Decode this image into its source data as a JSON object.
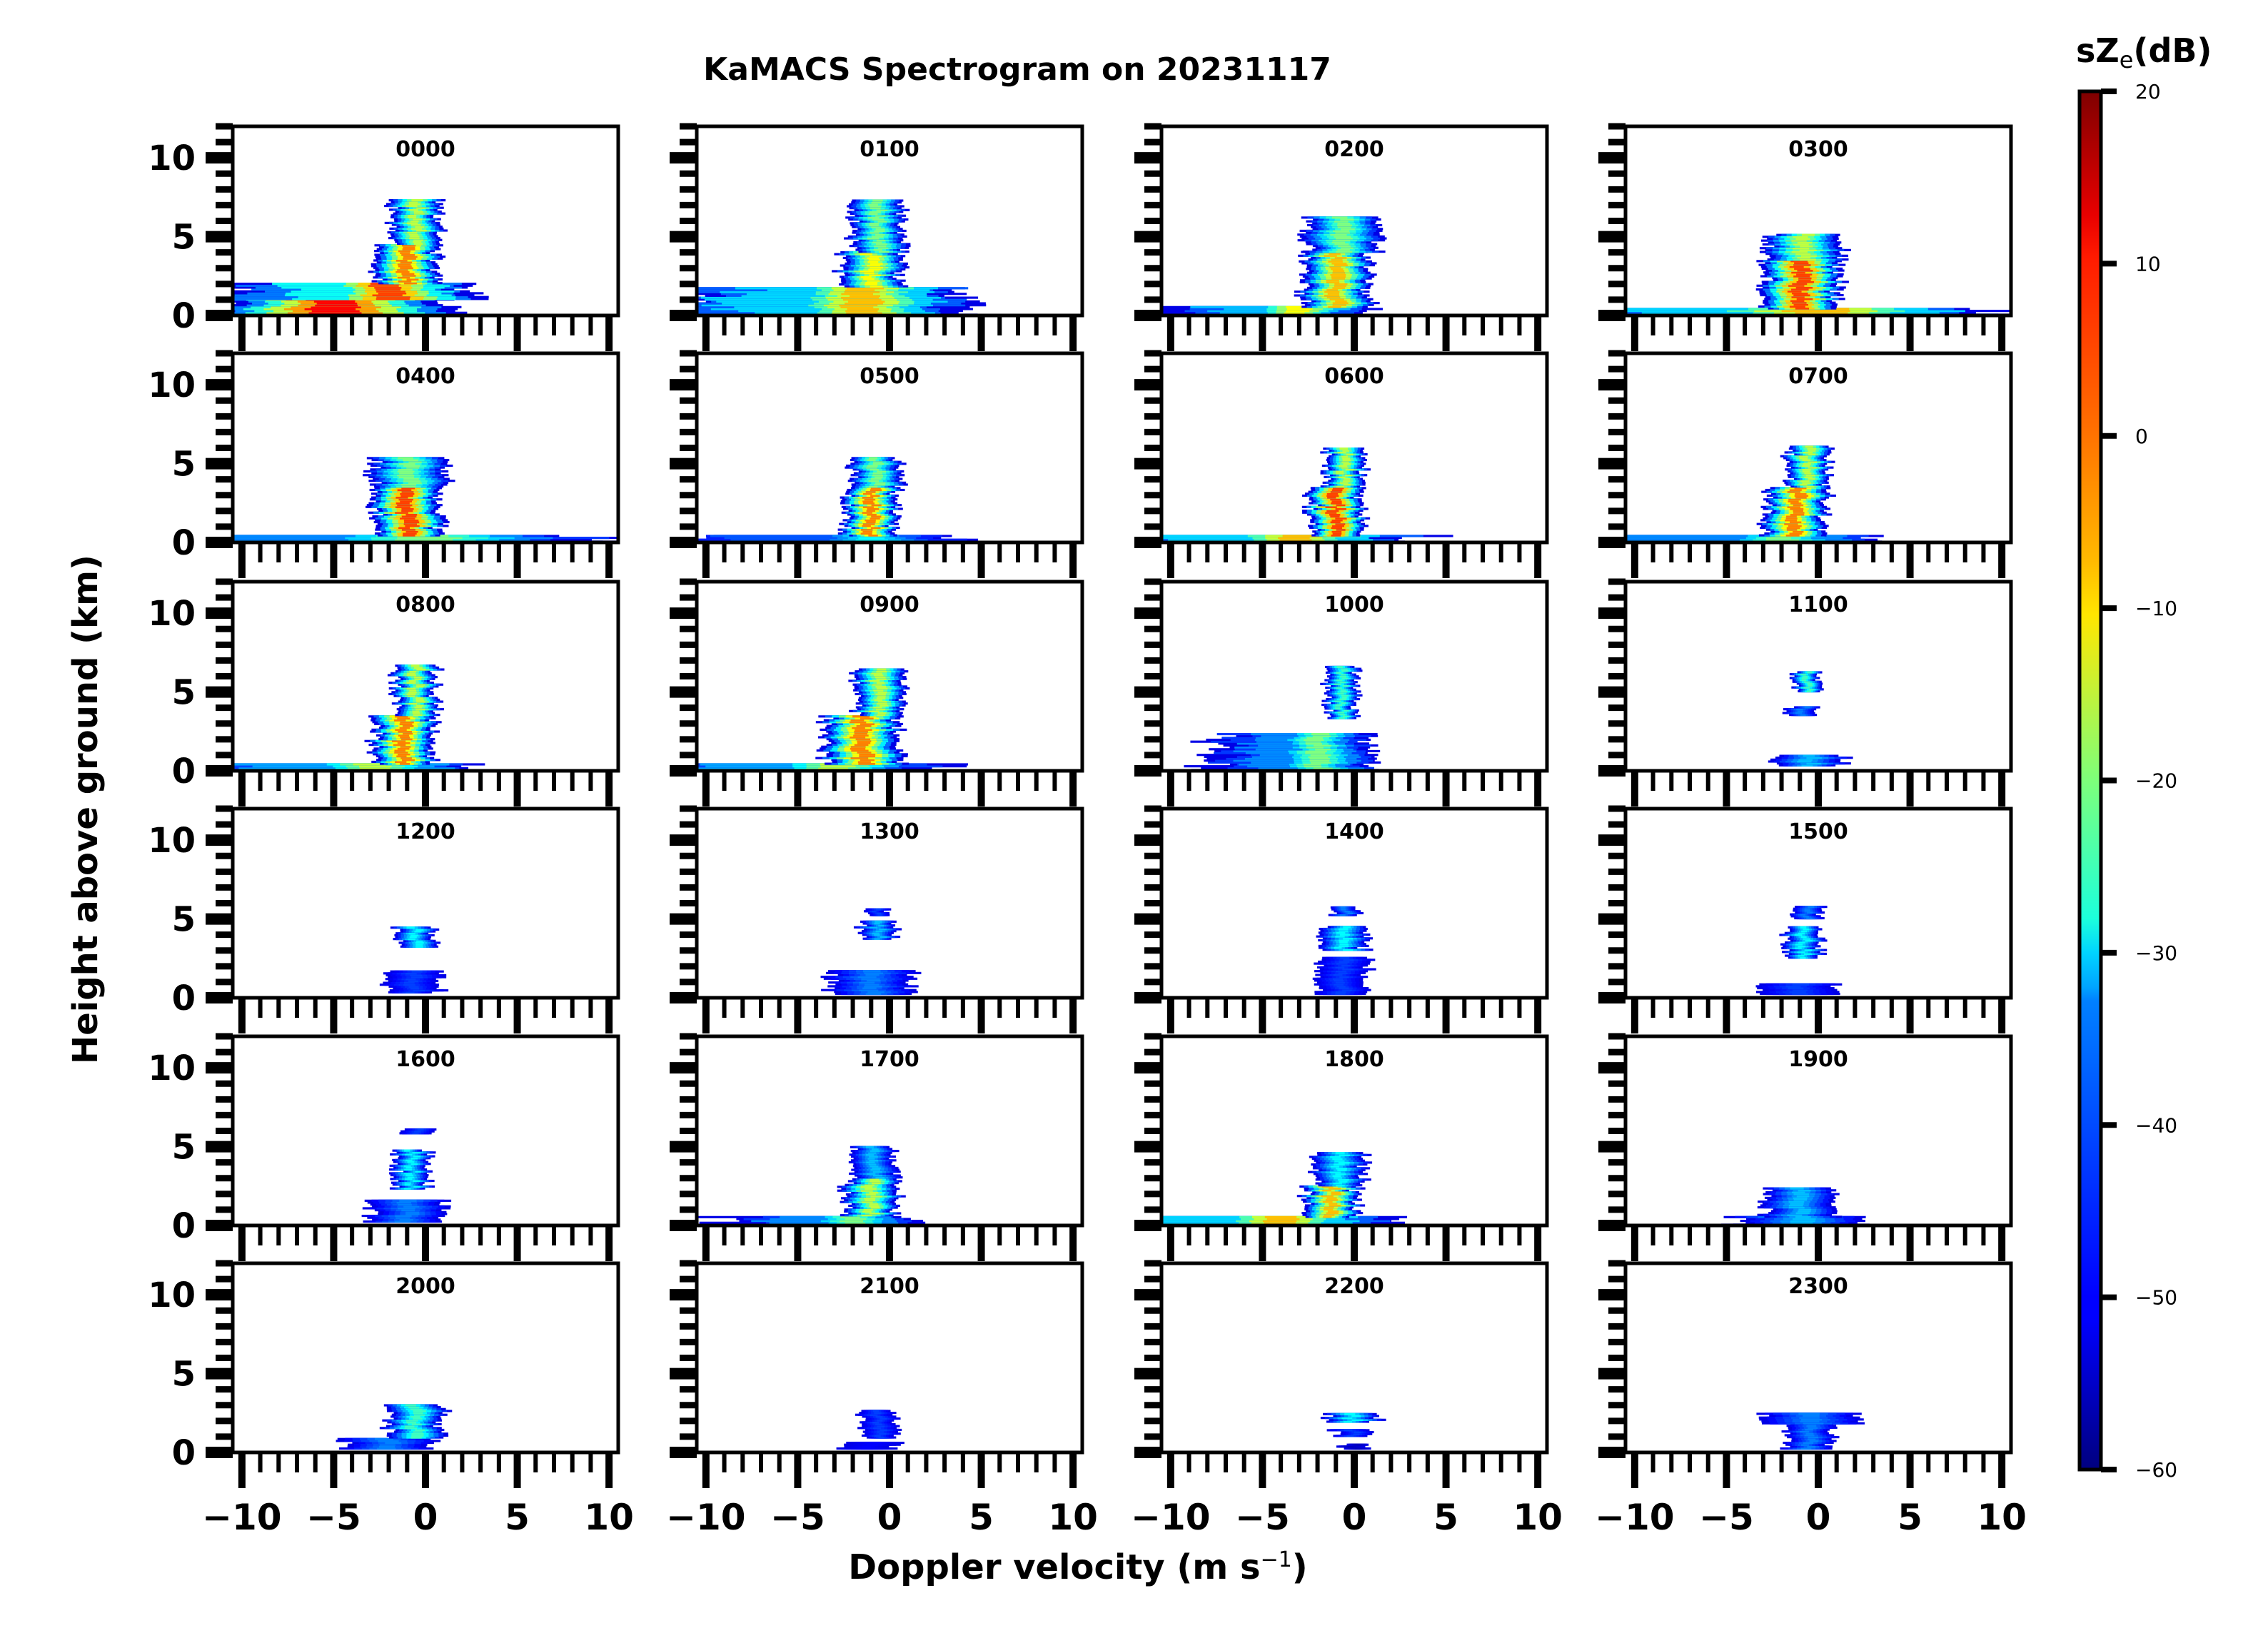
{
  "chart_data": {
    "type": "heatmap",
    "title": "KaMACS Spectrogram on 20231117",
    "xlabel": "Doppler velocity (m s",
    "xlabel_superscript": "−1",
    "xlabel_close": ")",
    "ylabel": "Height above ground (km)",
    "xlim": [
      -10.5,
      10.5
    ],
    "ylim": [
      0,
      12
    ],
    "x_ticks": [
      -10,
      -5,
      0,
      5,
      10
    ],
    "x_tick_labels": [
      "−10",
      "−5",
      "0",
      "5",
      "10"
    ],
    "y_ticks": [
      0,
      5,
      10
    ],
    "y_tick_labels": [
      "0",
      "5",
      "10"
    ],
    "colorbar": {
      "label": "sZ",
      "label_subscript": "e",
      "label_suffix": "(dB)",
      "colormap": "jet",
      "range": [
        -60,
        20
      ],
      "ticks": [
        20,
        10,
        0,
        -10,
        -20,
        -30,
        -40,
        -50,
        -60
      ],
      "tick_labels": [
        "20",
        "10",
        "0",
        "−10",
        "−20",
        "−30",
        "−40",
        "−50",
        "−60"
      ]
    },
    "panels": [
      {
        "label": "0000",
        "layers": [
          {
            "h": [
              0,
              1.0
            ],
            "v": [
              -10.5,
              10.5
            ],
            "vc": -5,
            "w": 6,
            "peak": 10
          },
          {
            "h": [
              1.0,
              2.0
            ],
            "vc": -2,
            "w": 4,
            "peak": 5,
            "spread": 9
          },
          {
            "h": [
              2.0,
              4.5
            ],
            "vc": -1.0,
            "w": 1.6,
            "peak": 0
          },
          {
            "h": [
              4.5,
              7.3
            ],
            "vc": -0.5,
            "w": 1.3,
            "peak": -15
          }
        ]
      },
      {
        "label": "0100",
        "layers": [
          {
            "h": [
              0,
              1.8
            ],
            "vc": -1.5,
            "w": 4.5,
            "peak": -5,
            "spread": 12
          },
          {
            "h": [
              1.8,
              4.0
            ],
            "vc": -1.0,
            "w": 1.6,
            "peak": -10
          },
          {
            "h": [
              4.0,
              7.3
            ],
            "vc": -0.6,
            "w": 1.4,
            "peak": -20
          }
        ]
      },
      {
        "label": "0200",
        "layers": [
          {
            "h": [
              0,
              0.5
            ],
            "vc": -3,
            "w": 3,
            "peak": -10,
            "spread": 8
          },
          {
            "h": [
              0.5,
              4.0
            ],
            "vc": -1.0,
            "w": 1.8,
            "peak": -5
          },
          {
            "h": [
              4.0,
              6.2
            ],
            "vc": -0.6,
            "w": 2.0,
            "peak": -20
          }
        ]
      },
      {
        "label": "0300",
        "layers": [
          {
            "h": [
              0,
              0.4
            ],
            "vc": 0,
            "w": 8,
            "peak": -5,
            "spread": 20
          },
          {
            "h": [
              0.4,
              3.5
            ],
            "vc": -1.0,
            "w": 2.0,
            "peak": 5
          },
          {
            "h": [
              3.5,
              5.1
            ],
            "vc": -0.8,
            "w": 2.0,
            "peak": -15
          }
        ]
      },
      {
        "label": "0400",
        "layers": [
          {
            "h": [
              0,
              0.4
            ],
            "vc": 0,
            "w": 8,
            "peak": -20,
            "spread": 20
          },
          {
            "h": [
              0.4,
              3.5
            ],
            "vc": -1.0,
            "w": 1.8,
            "peak": 5
          },
          {
            "h": [
              3.5,
              5.4
            ],
            "vc": -0.8,
            "w": 2.0,
            "peak": -20
          }
        ]
      },
      {
        "label": "0500",
        "layers": [
          {
            "h": [
              0,
              0.4
            ],
            "vc": -1,
            "w": 4,
            "peak": -30,
            "spread": 14
          },
          {
            "h": [
              0.4,
              3.5
            ],
            "vc": -1.0,
            "w": 1.4,
            "peak": 0
          },
          {
            "h": [
              3.5,
              5.4
            ],
            "vc": -0.7,
            "w": 1.3,
            "peak": -20
          }
        ]
      },
      {
        "label": "0600",
        "layers": [
          {
            "h": [
              0,
              0.4
            ],
            "vc": -3,
            "w": 5,
            "peak": -5,
            "spread": 16
          },
          {
            "h": [
              0.4,
              3.5
            ],
            "vc": -1.0,
            "w": 1.4,
            "peak": 5
          },
          {
            "h": [
              3.5,
              6.0
            ],
            "vc": -0.5,
            "w": 1.0,
            "peak": -15
          }
        ]
      },
      {
        "label": "0700",
        "layers": [
          {
            "h": [
              0,
              0.4
            ],
            "vc": -2,
            "w": 4,
            "peak": -20,
            "spread": 16
          },
          {
            "h": [
              0.4,
              3.5
            ],
            "vc": -1.2,
            "w": 1.6,
            "peak": 0
          },
          {
            "h": [
              3.5,
              6.1
            ],
            "vc": -0.6,
            "w": 1.1,
            "peak": -15
          }
        ]
      },
      {
        "label": "0800",
        "layers": [
          {
            "h": [
              0,
              0.4
            ],
            "vc": -3,
            "w": 4,
            "peak": -15,
            "spread": 18
          },
          {
            "h": [
              0.4,
              3.5
            ],
            "vc": -1.2,
            "w": 1.6,
            "peak": 0
          },
          {
            "h": [
              3.5,
              6.7
            ],
            "vc": -0.5,
            "w": 1.1,
            "peak": -15
          }
        ]
      },
      {
        "label": "0900",
        "layers": [
          {
            "h": [
              0,
              0.4
            ],
            "vc": -3,
            "w": 4,
            "peak": -15,
            "spread": 18
          },
          {
            "h": [
              0.4,
              3.5
            ],
            "vc": -1.5,
            "w": 2.0,
            "peak": 0
          },
          {
            "h": [
              3.5,
              6.4
            ],
            "vc": -0.6,
            "w": 1.3,
            "peak": -15
          }
        ]
      },
      {
        "label": "1000",
        "layers": [
          {
            "h": [
              0,
              2.3
            ],
            "vc": -2,
            "w": 2.5,
            "peak": -20,
            "spread": 6
          },
          {
            "h": [
              3.3,
              6.6
            ],
            "vc": -0.7,
            "w": 0.8,
            "peak": -25
          }
        ]
      },
      {
        "label": "1100",
        "layers": [
          {
            "h": [
              0.3,
              1.0
            ],
            "vc": -0.5,
            "w": 1.8,
            "peak": -35
          },
          {
            "h": [
              3.5,
              4.1
            ],
            "vc": -0.8,
            "w": 0.8,
            "peak": -40
          },
          {
            "h": [
              5.0,
              6.3
            ],
            "vc": -0.6,
            "w": 0.7,
            "peak": -25
          }
        ]
      },
      {
        "label": "1200",
        "layers": [
          {
            "h": [
              0.3,
              1.7
            ],
            "vc": -0.6,
            "w": 1.4,
            "peak": -45
          },
          {
            "h": [
              3.2,
              4.5
            ],
            "vc": -0.6,
            "w": 1.0,
            "peak": -30
          }
        ]
      },
      {
        "label": "1300",
        "layers": [
          {
            "h": [
              0.2,
              1.7
            ],
            "vc": -1.0,
            "w": 2.2,
            "peak": -40
          },
          {
            "h": [
              3.7,
              4.8
            ],
            "vc": -0.6,
            "w": 0.9,
            "peak": -35
          },
          {
            "h": [
              5.2,
              5.6
            ],
            "vc": -0.6,
            "w": 0.6,
            "peak": -45
          }
        ]
      },
      {
        "label": "1400",
        "layers": [
          {
            "h": [
              0.2,
              2.5
            ],
            "vc": -0.6,
            "w": 1.3,
            "peak": -45
          },
          {
            "h": [
              3.0,
              4.5
            ],
            "vc": -0.6,
            "w": 1.2,
            "peak": -30
          },
          {
            "h": [
              5.2,
              5.7
            ],
            "vc": -0.4,
            "w": 0.7,
            "peak": -40
          }
        ]
      },
      {
        "label": "1500",
        "layers": [
          {
            "h": [
              0.2,
              0.9
            ],
            "vc": -1.2,
            "w": 2.0,
            "peak": -45
          },
          {
            "h": [
              2.5,
              4.5
            ],
            "vc": -0.8,
            "w": 0.9,
            "peak": -30
          },
          {
            "h": [
              5.0,
              5.8
            ],
            "vc": -0.6,
            "w": 0.8,
            "peak": -40
          }
        ]
      },
      {
        "label": "1600",
        "layers": [
          {
            "h": [
              0.2,
              1.6
            ],
            "vc": -1.0,
            "w": 2.0,
            "peak": -40
          },
          {
            "h": [
              2.3,
              4.8
            ],
            "vc": -0.7,
            "w": 0.9,
            "peak": -30
          },
          {
            "h": [
              5.8,
              6.1
            ],
            "vc": -0.5,
            "w": 0.8,
            "peak": -45
          }
        ]
      },
      {
        "label": "1700",
        "layers": [
          {
            "h": [
              0,
              0.6
            ],
            "vc": -2,
            "w": 3,
            "peak": -20,
            "spread": 8
          },
          {
            "h": [
              0.6,
              3.0
            ],
            "vc": -1.0,
            "w": 1.4,
            "peak": -15
          },
          {
            "h": [
              3.0,
              5.0
            ],
            "vc": -0.8,
            "w": 1.1,
            "peak": -35
          }
        ]
      },
      {
        "label": "1800",
        "layers": [
          {
            "h": [
              0,
              0.5
            ],
            "vc": -4,
            "w": 4,
            "peak": -5,
            "spread": 18
          },
          {
            "h": [
              0.5,
              2.5
            ],
            "vc": -1.2,
            "w": 1.4,
            "peak": -5
          },
          {
            "h": [
              2.5,
              4.6
            ],
            "vc": -0.8,
            "w": 1.3,
            "peak": -30
          }
        ]
      },
      {
        "label": "1900",
        "layers": [
          {
            "h": [
              0,
              0.5
            ],
            "vc": -1.0,
            "w": 3.5,
            "peak": -35
          },
          {
            "h": [
              0.5,
              2.4
            ],
            "vc": -1.0,
            "w": 1.8,
            "peak": -35
          }
        ]
      },
      {
        "label": "2000",
        "layers": [
          {
            "h": [
              0.2,
              0.9
            ],
            "vc": -2.0,
            "w": 2.5,
            "peak": -40
          },
          {
            "h": [
              0.9,
              3.0
            ],
            "vc": -0.6,
            "w": 1.5,
            "peak": -25
          }
        ]
      },
      {
        "label": "2100",
        "layers": [
          {
            "h": [
              0.2,
              0.6
            ],
            "vc": -1.0,
            "w": 1.4,
            "peak": -50
          },
          {
            "h": [
              0.9,
              2.7
            ],
            "vc": -0.6,
            "w": 0.9,
            "peak": -45
          }
        ]
      },
      {
        "label": "2200",
        "layers": [
          {
            "h": [
              0.2,
              0.5
            ],
            "vc": -0.1,
            "w": 0.7,
            "peak": -55
          },
          {
            "h": [
              1.0,
              1.4
            ],
            "vc": -0.1,
            "w": 1.0,
            "peak": -45
          },
          {
            "h": [
              1.9,
              2.5
            ],
            "vc": -0.1,
            "w": 1.3,
            "peak": -30
          }
        ]
      },
      {
        "label": "2300",
        "layers": [
          {
            "h": [
              0.2,
              1.8
            ],
            "vc": -0.5,
            "w": 1.2,
            "peak": -40
          },
          {
            "h": [
              1.8,
              2.5
            ],
            "vc": -0.3,
            "w": 2.4,
            "peak": -40
          }
        ]
      }
    ]
  }
}
